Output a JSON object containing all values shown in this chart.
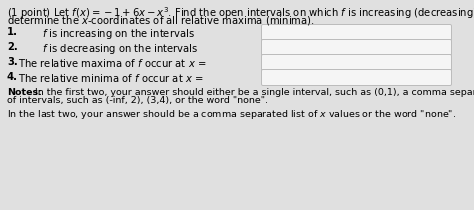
{
  "bg_color": "#e0e0e0",
  "title_line1": "(1 point) Let $f(x) = -1 + 6x - x^3$. Find the open intervals on which $f$ is increasing (decreasing). Then",
  "title_line2": "determine the $x$-coordinates of all relative maxima (minima).",
  "items": [
    {
      "num": "1.",
      "label": "f",
      "text_after": " is increasing on the intervals"
    },
    {
      "num": "2.",
      "label": "f",
      "text_after": " is decreasing on the intervals"
    },
    {
      "num": "3.",
      "label": null,
      "text_before": "The relative maxima of ",
      "label2": "f",
      "text_after": " occur at $x$ ="
    },
    {
      "num": "4.",
      "label": null,
      "text_before": "The relative minima of ",
      "label2": "f",
      "text_after": " occur at $x$ ="
    }
  ],
  "item1_text": "$f$ is increasing on the intervals",
  "item2_text": "$f$ is decreasing on the intervals",
  "item3_text": "The relative maxima of $f$ occur at $x$ =",
  "item4_text": "The relative minima of $f$ occur at $x$ =",
  "notes_bold": "Notes:",
  "notes_text1": " In the first two, your answer should either be a single interval, such as (0,1), a comma separated list",
  "notes_text2": "of intervals, such as (-inf, 2), (3,4), or the word \"none\".",
  "notes_text3": "In the last two, your answer should be a comma separated list of $x$ values or the word \"none\".",
  "input_box_color": "#f5f5f5",
  "input_box_border": "#bbbbbb",
  "font_size_main": 7.2,
  "font_size_notes": 6.8,
  "num_bold": [
    true,
    true,
    false,
    false
  ]
}
